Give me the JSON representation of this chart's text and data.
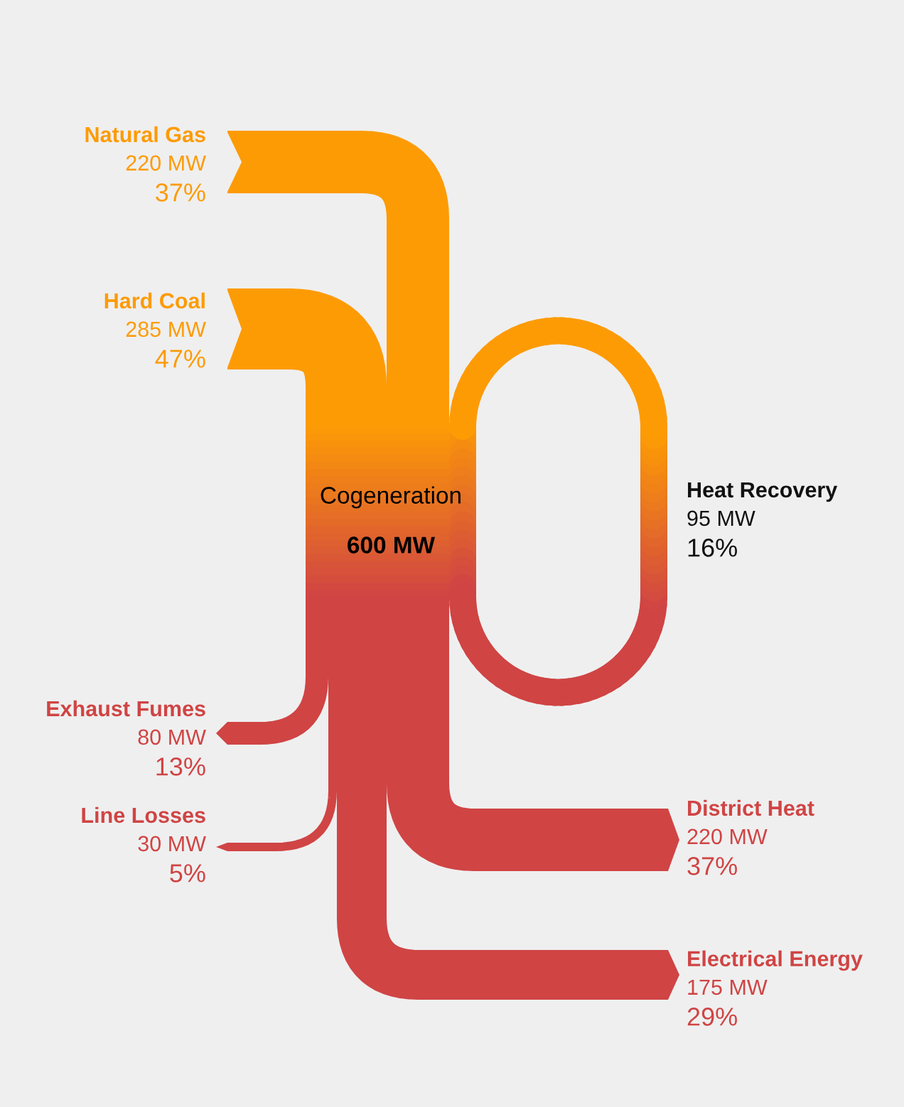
{
  "chart_data": {
    "type": "other",
    "categories": [
      "Natural Gas",
      "Hard Coal",
      "Heat Recovery",
      "Exhaust Fumes",
      "Line Losses",
      "District Heat",
      "Electrical Energy"
    ],
    "values": [
      220,
      285,
      95,
      80,
      30,
      220,
      175
    ],
    "value_labels": [
      "220 MW",
      "285 MW",
      "95 MW",
      "80 MW",
      "30 MW",
      "220 MW",
      "175 MW"
    ],
    "colors": [
      "#fd9b05",
      "#fd9b05",
      null,
      "#d04444",
      "#d04444",
      "#d04444",
      "#d04444"
    ],
    "annotations": [
      "Cogeneration",
      "600 MW",
      "37%",
      "47%",
      "16%",
      "13%",
      "5%",
      "37%",
      "29%"
    ]
  }
}
